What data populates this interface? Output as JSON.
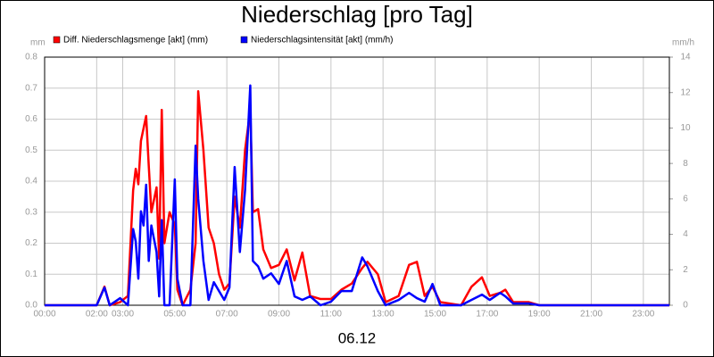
{
  "chart_data": {
    "type": "line",
    "title": "Niederschlag [pro Tag]",
    "x_label": "06.12",
    "y_label": "mm",
    "y2_label": "mm/h",
    "x": [
      0,
      2.0,
      2.3,
      2.5,
      2.9,
      3.2,
      3.4,
      3.5,
      3.6,
      3.7,
      3.8,
      3.9,
      4.0,
      4.1,
      4.3,
      4.4,
      4.5,
      4.6,
      4.8,
      5.0,
      5.1,
      5.3,
      5.6,
      5.8,
      5.9,
      6.1,
      6.3,
      6.5,
      6.7,
      6.9,
      7.1,
      7.3,
      7.5,
      7.7,
      7.9,
      8.0,
      8.2,
      8.4,
      8.7,
      9.0,
      9.3,
      9.6,
      9.9,
      10.2,
      10.6,
      11.0,
      11.4,
      11.8,
      12.2,
      12.4,
      12.8,
      13.1,
      13.6,
      14.0,
      14.3,
      14.6,
      14.9,
      15.2,
      16.0,
      16.4,
      16.8,
      17.1,
      17.5,
      17.7,
      18.0,
      18.6,
      19.0,
      24
    ],
    "series": [
      {
        "name": "Diff. Niederschlagsmenge [akt] (mm)",
        "color": "#ff0000",
        "values": [
          0,
          0,
          0.06,
          0,
          0.01,
          0.03,
          0.37,
          0.44,
          0.39,
          0.53,
          0.57,
          0.61,
          0.45,
          0.3,
          0.38,
          0.15,
          0.63,
          0.2,
          0.3,
          0.26,
          0.05,
          0,
          0.05,
          0.2,
          0.69,
          0.5,
          0.25,
          0.2,
          0.1,
          0.05,
          0.07,
          0.35,
          0.25,
          0.5,
          0.63,
          0.3,
          0.31,
          0.18,
          0.12,
          0.13,
          0.18,
          0.08,
          0.17,
          0.03,
          0.02,
          0.02,
          0.05,
          0.07,
          0.12,
          0.14,
          0.1,
          0.01,
          0.03,
          0.13,
          0.14,
          0.03,
          0.06,
          0.01,
          0,
          0.06,
          0.09,
          0.03,
          0.04,
          0.05,
          0.01,
          0.01,
          0,
          0
        ]
      },
      {
        "name": "Niederschlagsintensität [akt] (mm/h)",
        "color": "#0000ff",
        "axis": "y2",
        "values": [
          0,
          0,
          1.0,
          0,
          0.4,
          0,
          4.3,
          3.6,
          1.5,
          5.3,
          4.5,
          6.8,
          2.5,
          4.5,
          3.0,
          0.5,
          4.8,
          0,
          0,
          7.1,
          1.5,
          0,
          0,
          9.0,
          6.0,
          2.5,
          0.3,
          1.3,
          0.8,
          0.3,
          1.0,
          7.8,
          3.0,
          6.5,
          12.4,
          2.5,
          2.2,
          1.5,
          1.8,
          1.2,
          2.5,
          0.5,
          0.3,
          0.5,
          0,
          0.2,
          0.8,
          0.8,
          2.7,
          2.2,
          0.8,
          0,
          0.3,
          0.7,
          0.4,
          0.2,
          1.2,
          0,
          0,
          0.3,
          0.6,
          0.3,
          0.7,
          0.5,
          0.1,
          0.1,
          0,
          0
        ]
      }
    ],
    "xlim": [
      0,
      24
    ],
    "xticks": [
      {
        "value": 0,
        "label": "00:00"
      },
      {
        "value": 2,
        "label": "02:00"
      },
      {
        "value": 3,
        "label": "03:00"
      },
      {
        "value": 5,
        "label": "05:00"
      },
      {
        "value": 7,
        "label": "07:00"
      },
      {
        "value": 9,
        "label": "09:00"
      },
      {
        "value": 11,
        "label": "11:00"
      },
      {
        "value": 13,
        "label": "13:00"
      },
      {
        "value": 15,
        "label": "15:00"
      },
      {
        "value": 17,
        "label": "17:00"
      },
      {
        "value": 19,
        "label": "19:00"
      },
      {
        "value": 21,
        "label": "21:00"
      },
      {
        "value": 23,
        "label": "23:00"
      }
    ],
    "ylim": [
      0,
      0.8
    ],
    "yticks": [
      {
        "value": 0,
        "label": "0.0"
      },
      0.1,
      0.2,
      0.3,
      0.4,
      0.5,
      0.6,
      0.7,
      0.8
    ],
    "y2lim": [
      0,
      14
    ],
    "y2ticks": [
      0,
      2,
      4,
      6,
      8,
      10,
      12,
      14
    ],
    "grid": true
  }
}
